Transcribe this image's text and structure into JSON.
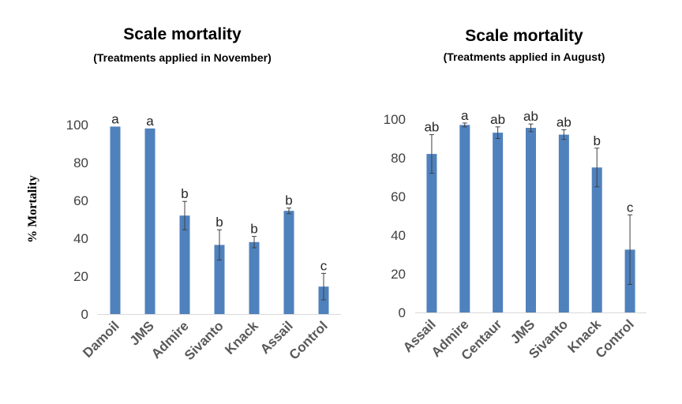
{
  "chart_data": [
    {
      "type": "bar",
      "title": "Scale mortality",
      "subtitle": "(Treatments applied in November)",
      "ylabel": "% Mortality",
      "xlabel": "",
      "ylim": [
        0,
        100
      ],
      "yticks": [
        0,
        20,
        40,
        60,
        80,
        100
      ],
      "grid": false,
      "legend": "none",
      "color": "#4f81bd",
      "categories": [
        "Damoil",
        "JMS",
        "Admire",
        "Sivanto",
        "Knack",
        "Assail",
        "Control"
      ],
      "values": [
        99,
        98,
        52,
        36.5,
        38,
        54.5,
        14.5
      ],
      "errors": [
        0,
        0,
        7.5,
        8,
        3,
        1.5,
        7
      ],
      "letters": [
        "a",
        "a",
        "b",
        "b",
        "b",
        "b",
        "c"
      ]
    },
    {
      "type": "bar",
      "title": "Scale mortality",
      "subtitle": "(Treatments applied in August)",
      "ylabel": "",
      "xlabel": "",
      "ylim": [
        0,
        100
      ],
      "yticks": [
        0,
        20,
        40,
        60,
        80,
        100
      ],
      "grid": false,
      "legend": "none",
      "color": "#4f81bd",
      "categories": [
        "Assail",
        "Admire",
        "Centaur",
        "JMS",
        "Sivanto",
        "Knack",
        "Control"
      ],
      "values": [
        82,
        97,
        93,
        95.5,
        92,
        75,
        32.5
      ],
      "errors": [
        10,
        1,
        3,
        2,
        2.5,
        10,
        18
      ],
      "letters": [
        "ab",
        "a",
        "ab",
        "ab",
        "ab",
        "b",
        "c"
      ]
    }
  ]
}
